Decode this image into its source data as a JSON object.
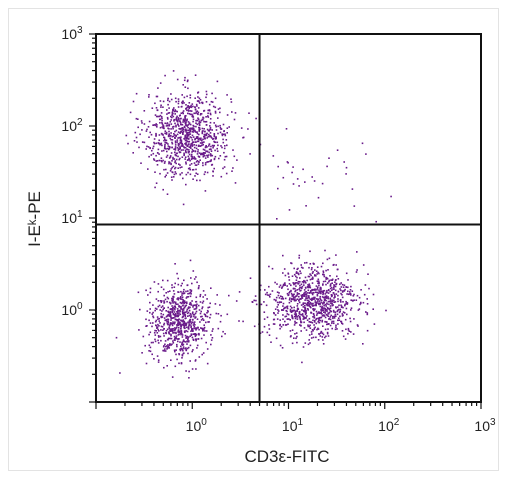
{
  "chart_data": {
    "type": "scatter",
    "title": "",
    "xlabel": "CD3ε-FITC",
    "ylabel": "I-Eᵏ-PE",
    "xscale": "log",
    "yscale": "log",
    "xlim": [
      0.1,
      1000
    ],
    "ylim": [
      0.1,
      1000
    ],
    "x_ticks": [
      {
        "value": 1,
        "base": "10",
        "exp": "0"
      },
      {
        "value": 10,
        "base": "10",
        "exp": "1"
      },
      {
        "value": 100,
        "base": "10",
        "exp": "2"
      },
      {
        "value": 1000,
        "base": "10",
        "exp": "3"
      }
    ],
    "y_ticks": [
      {
        "value": 1,
        "base": "10",
        "exp": "0"
      },
      {
        "value": 10,
        "base": "10",
        "exp": "1"
      },
      {
        "value": 100,
        "base": "10",
        "exp": "2"
      },
      {
        "value": 1000,
        "base": "10",
        "exp": "3"
      }
    ],
    "quadrant_gate": {
      "x": 5,
      "y": 8.5
    },
    "grid": false,
    "legend": "none",
    "point_color": "#6a1b8a",
    "populations": [
      {
        "center_x": 0.9,
        "center_y": 80,
        "log_spread_x": 0.22,
        "log_spread_y": 0.23,
        "count": 950
      },
      {
        "center_x": 0.75,
        "center_y": 0.75,
        "log_spread_x": 0.16,
        "log_spread_y": 0.2,
        "count": 750
      },
      {
        "center_x": 18,
        "center_y": 1.2,
        "log_spread_x": 0.24,
        "log_spread_y": 0.2,
        "count": 950
      },
      {
        "center_x": 15,
        "center_y": 30,
        "log_spread_x": 0.35,
        "log_spread_y": 0.35,
        "count": 35
      }
    ]
  }
}
